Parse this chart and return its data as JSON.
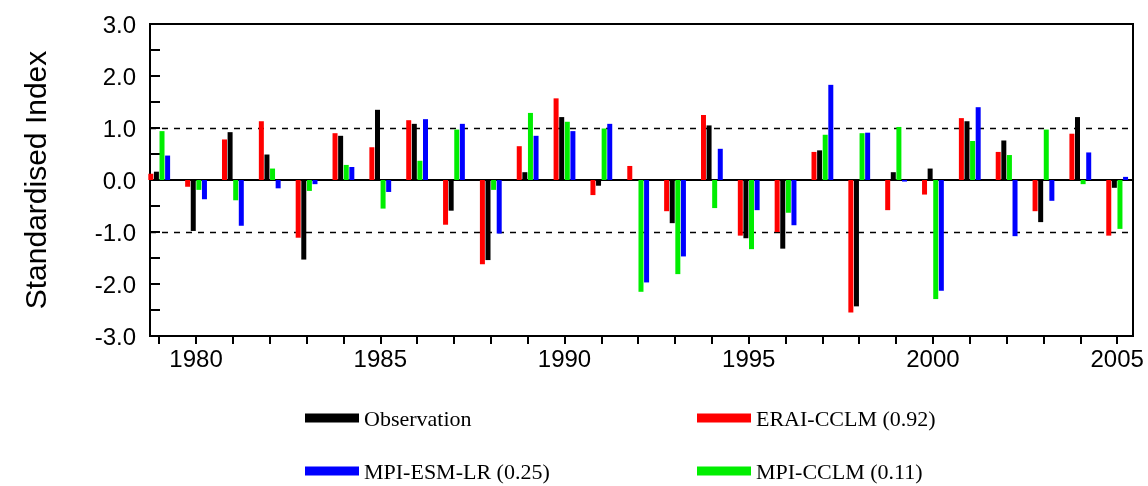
{
  "chart_data": {
    "type": "bar",
    "ylabel": "Standardised Index",
    "x": [
      1979,
      1980,
      1981,
      1982,
      1983,
      1984,
      1985,
      1986,
      1987,
      1988,
      1989,
      1990,
      1991,
      1992,
      1993,
      1994,
      1995,
      1996,
      1997,
      1998,
      1999,
      2000,
      2001,
      2002,
      2003,
      2004,
      2005
    ],
    "series": [
      {
        "name": "ERAI-CCLM (0.92)",
        "color": "#ff0000",
        "values": [
          0.12,
          -0.13,
          0.78,
          1.13,
          -1.11,
          0.9,
          0.63,
          1.15,
          -0.86,
          -1.62,
          0.65,
          1.57,
          -0.29,
          0.27,
          -0.6,
          1.25,
          -1.07,
          -1.0,
          0.54,
          -2.55,
          -0.58,
          -0.28,
          1.19,
          0.54,
          -0.6,
          0.89,
          -1.07
        ]
      },
      {
        "name": "Observation",
        "color": "#000000",
        "values": [
          0.16,
          -0.98,
          0.92,
          0.49,
          -1.53,
          0.85,
          1.35,
          1.08,
          -0.59,
          -1.54,
          0.15,
          1.21,
          -0.11,
          0.01,
          -0.83,
          1.05,
          -1.12,
          -1.32,
          0.57,
          -2.43,
          0.15,
          0.22,
          1.13,
          0.76,
          -0.81,
          1.21,
          -0.15
        ]
      },
      {
        "name": "MPI-CCLM (0.11)",
        "color": "#00ee00",
        "values": [
          0.94,
          -0.19,
          -0.39,
          0.22,
          -0.21,
          0.29,
          -0.55,
          0.37,
          0.97,
          -0.19,
          1.29,
          1.12,
          0.99,
          -2.15,
          -1.81,
          -0.54,
          -1.33,
          -0.63,
          0.87,
          0.9,
          1.02,
          -2.29,
          0.75,
          0.48,
          0.97,
          -0.08,
          -0.94
        ]
      },
      {
        "name": "MPI-ESM-LR (0.25)",
        "color": "#0000ff",
        "values": [
          0.47,
          -0.37,
          -0.88,
          -0.16,
          -0.08,
          0.25,
          -0.23,
          1.17,
          1.08,
          -1.03,
          0.85,
          0.94,
          1.08,
          -1.97,
          -1.47,
          0.6,
          -0.58,
          -0.87,
          1.83,
          0.91,
          -0.03,
          -2.13,
          1.4,
          -1.08,
          -0.4,
          0.53,
          0.06
        ]
      }
    ],
    "xlim": [
      1978.75,
      2005.43
    ],
    "xticks": [
      {
        "value": 1979,
        "label": null
      },
      1980,
      {
        "value": 1981,
        "label": null
      },
      {
        "value": 1982,
        "label": null
      },
      {
        "value": 1983,
        "label": null
      },
      {
        "value": 1984,
        "label": null
      },
      1985,
      {
        "value": 1986,
        "label": null
      },
      {
        "value": 1987,
        "label": null
      },
      {
        "value": 1988,
        "label": null
      },
      {
        "value": 1989,
        "label": null
      },
      1990,
      {
        "value": 1991,
        "label": null
      },
      {
        "value": 1992,
        "label": null
      },
      {
        "value": 1993,
        "label": null
      },
      {
        "value": 1994,
        "label": null
      },
      1995,
      {
        "value": 1996,
        "label": null
      },
      {
        "value": 1997,
        "label": null
      },
      {
        "value": 1998,
        "label": null
      },
      {
        "value": 1999,
        "label": null
      },
      2000,
      {
        "value": 2001,
        "label": null
      },
      {
        "value": 2002,
        "label": null
      },
      {
        "value": 2003,
        "label": null
      },
      {
        "value": 2004,
        "label": null
      },
      2005
    ],
    "ylim": [
      -3,
      3
    ],
    "yticks": [
      {
        "value": -3,
        "label": "-3.0"
      },
      {
        "value": -2.5,
        "label": null
      },
      {
        "value": -2,
        "label": "-2.0"
      },
      {
        "value": -1.5,
        "label": null
      },
      {
        "value": -1,
        "label": "-1.0"
      },
      {
        "value": -0.5,
        "label": null
      },
      {
        "value": 0,
        "label": "0.0"
      },
      {
        "value": 0.5,
        "label": null
      },
      {
        "value": 1,
        "label": "1.0"
      },
      {
        "value": 1.5,
        "label": null
      },
      {
        "value": 2,
        "label": "2.0"
      },
      {
        "value": 2.5,
        "label": null
      },
      {
        "value": 3,
        "label": "3.0"
      }
    ],
    "ref_lines": [
      {
        "axis": "y",
        "value": 1,
        "line_style": "dashed",
        "color": "#000000"
      },
      {
        "axis": "y",
        "value": -1,
        "line_style": "dashed",
        "color": "#000000"
      },
      {
        "axis": "y",
        "value": 0,
        "line_style": "solid",
        "color": "#000000"
      }
    ],
    "legend": "bottom",
    "grid": false
  }
}
